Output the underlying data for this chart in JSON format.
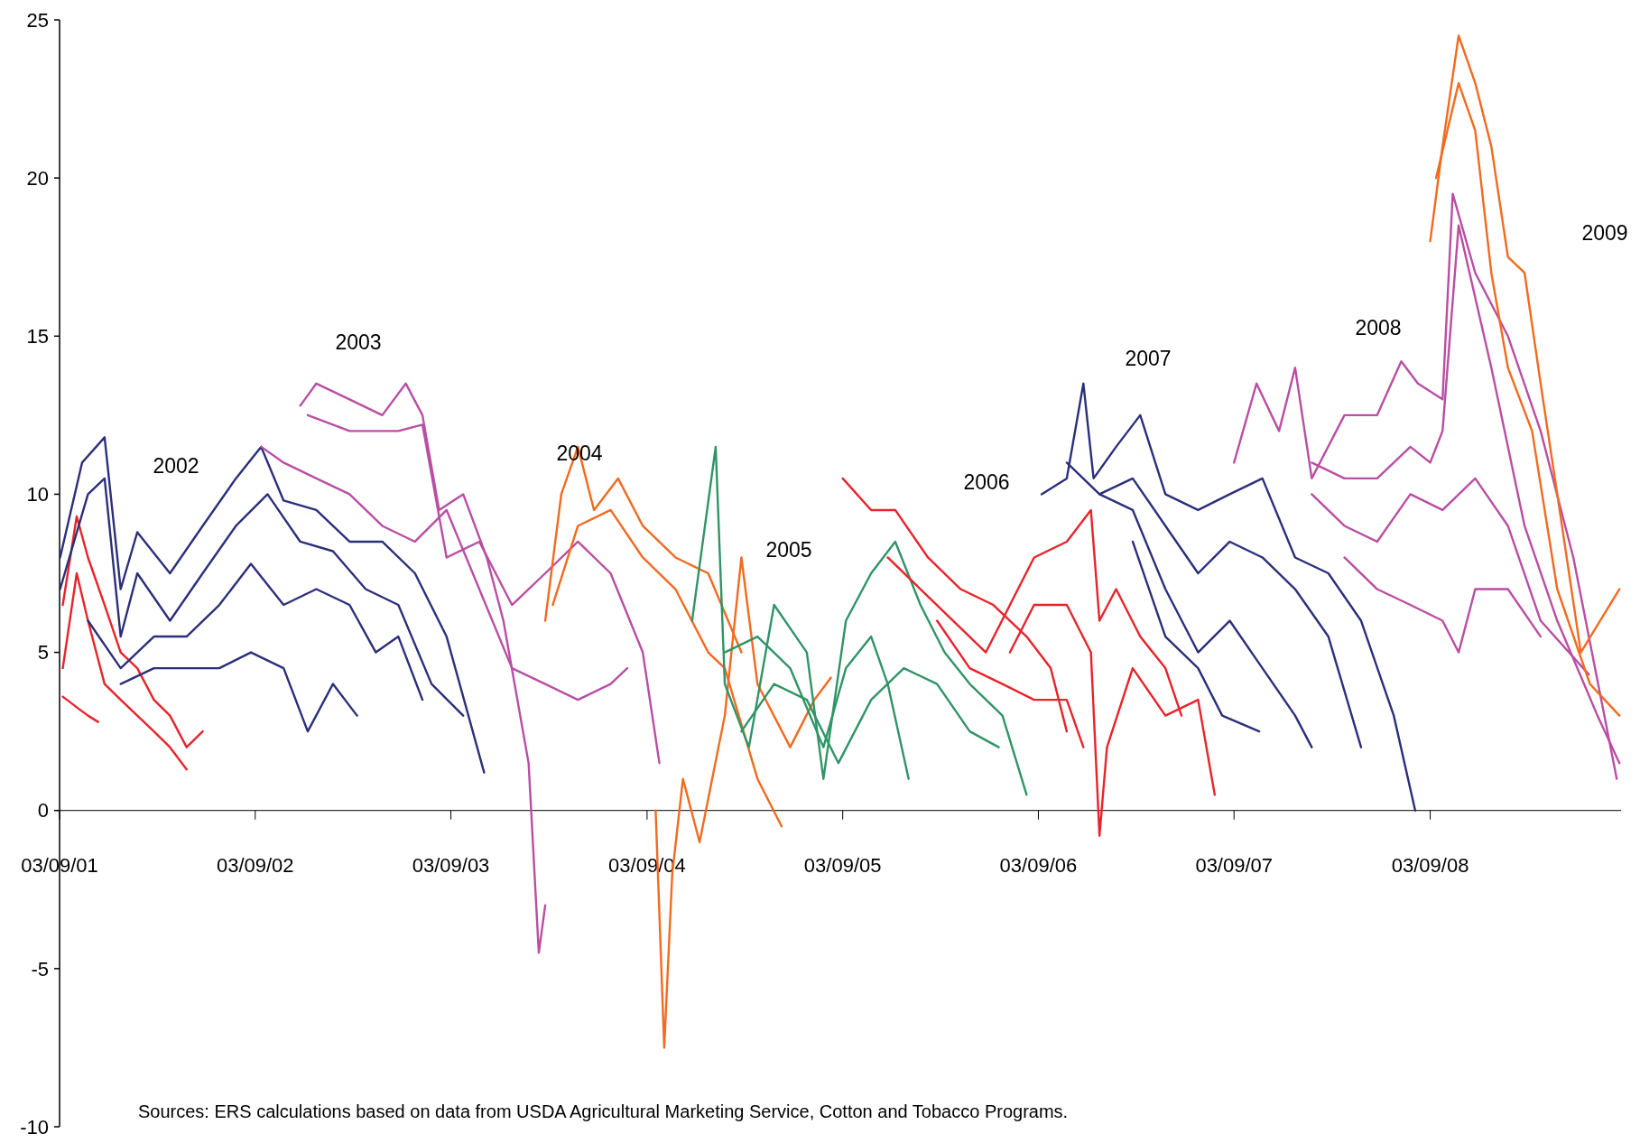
{
  "chart_data": {
    "type": "line",
    "xlim": [
      "2001-03-09",
      "2009-02-28"
    ],
    "ylim": [
      -10,
      25
    ],
    "xticks": [
      {
        "value": "2001-03-09",
        "label": "03/09/01"
      },
      {
        "value": "2002-03-09",
        "label": "03/09/02"
      },
      {
        "value": "2003-03-09",
        "label": "03/09/03"
      },
      {
        "value": "2004-03-09",
        "label": "03/09/04"
      },
      {
        "value": "2005-03-09",
        "label": "03/09/05"
      },
      {
        "value": "2006-03-09",
        "label": "03/09/06"
      },
      {
        "value": "2007-03-09",
        "label": "03/09/07"
      },
      {
        "value": "2008-03-09",
        "label": "03/09/08"
      }
    ],
    "yticks": [
      -10,
      -5,
      0,
      5,
      10,
      15,
      20,
      25
    ],
    "grid": false,
    "series": [
      {
        "color": "#e8232a",
        "x": [
          "2001-03-15",
          "2001-04-10",
          "2001-05-01",
          "2001-06-01",
          "2001-07-01",
          "2001-08-01",
          "2001-09-01",
          "2001-10-01",
          "2001-11-01",
          "2001-12-01"
        ],
        "values": [
          6.5,
          9.3,
          8,
          6.5,
          5,
          4.5,
          3.5,
          3,
          2,
          2.5
        ]
      },
      {
        "color": "#e8232a",
        "x": [
          "2001-03-15",
          "2001-04-10",
          "2001-05-01",
          "2001-06-01",
          "2001-07-01",
          "2001-08-01",
          "2001-09-01",
          "2001-10-01",
          "2001-11-01"
        ],
        "values": [
          4.5,
          7.5,
          6,
          4,
          3.5,
          3,
          2.5,
          2,
          1.3
        ]
      },
      {
        "color": "#e8232a",
        "x": [
          "2001-03-15",
          "2001-04-15",
          "2001-05-01",
          "2001-05-20"
        ],
        "values": [
          3.6,
          3.2,
          3,
          2.8
        ]
      },
      {
        "color": "#2b2f7a",
        "x": [
          "2001-03-10",
          "2001-04-20",
          "2001-06-01",
          "2001-07-01",
          "2001-08-01",
          "2001-10-01",
          "2001-12-01",
          "2002-02-01",
          "2002-03-20",
          "2002-05-01",
          "2002-07-01",
          "2002-09-01",
          "2002-11-01",
          "2003-01-01",
          "2003-03-01",
          "2003-05-10"
        ],
        "values": [
          8,
          11,
          11.8,
          7,
          8.8,
          7.5,
          9,
          10.5,
          11.5,
          9.8,
          9.5,
          8.5,
          8.5,
          7.5,
          5.5,
          1.2
        ]
      },
      {
        "color": "#2b2f7a",
        "x": [
          "2001-03-10",
          "2001-05-01",
          "2001-06-01",
          "2001-07-01",
          "2001-08-01",
          "2001-10-01",
          "2001-12-01",
          "2002-02-01",
          "2002-04-01",
          "2002-06-01",
          "2002-08-01",
          "2002-10-01",
          "2002-12-01",
          "2003-02-01",
          "2003-04-01"
        ],
        "values": [
          7,
          10,
          10.5,
          5.5,
          7.5,
          6,
          7.5,
          9,
          10,
          8.5,
          8.2,
          7,
          6.5,
          4,
          3
        ]
      },
      {
        "color": "#2b2f7a",
        "x": [
          "2001-05-01",
          "2001-07-01",
          "2001-09-01",
          "2001-11-01",
          "2002-01-01",
          "2002-03-01",
          "2002-05-01",
          "2002-07-01",
          "2002-09-01",
          "2002-10-20",
          "2002-12-01",
          "2003-01-15"
        ],
        "values": [
          6,
          4.5,
          5.5,
          5.5,
          6.5,
          7.8,
          6.5,
          7,
          6.5,
          5,
          5.5,
          3.5
        ]
      },
      {
        "color": "#2b2f7a",
        "x": [
          "2001-07-01",
          "2001-09-01",
          "2001-11-01",
          "2002-01-01",
          "2002-03-01",
          "2002-05-01",
          "2002-06-15",
          "2002-08-01",
          "2002-09-15"
        ],
        "values": [
          4,
          4.5,
          4.5,
          4.5,
          5,
          4.5,
          2.5,
          4,
          3
        ]
      },
      {
        "color": "#b94ea3",
        "x": [
          "2002-06-01",
          "2002-07-01",
          "2002-09-01",
          "2002-11-01",
          "2002-12-15",
          "2003-01-15",
          "2003-02-15",
          "2003-04-01",
          "2003-05-15",
          "2003-06-15",
          "2003-08-01",
          "2003-08-20",
          "2003-09-01"
        ],
        "values": [
          12.8,
          13.5,
          13,
          12.5,
          13.5,
          12.5,
          9.5,
          10,
          8,
          6,
          1.5,
          -4.5,
          -3
        ]
      },
      {
        "color": "#b94ea3",
        "x": [
          "2002-03-20",
          "2002-05-01",
          "2002-07-01",
          "2002-09-01",
          "2002-11-01",
          "2003-01-01",
          "2003-03-01",
          "2003-05-01",
          "2003-07-01",
          "2003-09-01",
          "2003-11-01",
          "2004-01-01",
          "2004-02-01"
        ],
        "values": [
          11.5,
          11,
          10.5,
          10,
          9,
          8.5,
          9.5,
          7,
          4.5,
          4,
          3.5,
          4,
          4.5
        ]
      },
      {
        "color": "#b94ea3",
        "x": [
          "2002-06-15",
          "2002-09-01",
          "2002-12-01",
          "2003-01-15",
          "2003-03-01",
          "2003-05-01",
          "2003-07-01",
          "2003-09-01",
          "2003-11-01",
          "2004-01-01",
          "2004-03-01",
          "2004-04-01"
        ],
        "values": [
          12.5,
          12,
          12,
          12.2,
          8,
          8.5,
          6.5,
          7.5,
          8.5,
          7.5,
          5,
          1.5
        ]
      },
      {
        "color": "#f26a1f",
        "x": [
          "2003-09-01",
          "2003-10-01",
          "2003-11-01",
          "2003-12-01",
          "2004-01-15",
          "2004-03-01",
          "2004-05-01",
          "2004-07-01",
          "2004-09-01"
        ],
        "values": [
          6,
          10,
          11.5,
          9.5,
          10.5,
          9,
          8,
          7.5,
          5
        ]
      },
      {
        "color": "#f26a1f",
        "x": [
          "2003-09-15",
          "2003-11-01",
          "2004-01-01",
          "2004-03-01",
          "2004-05-01",
          "2004-07-01",
          "2004-08-01",
          "2004-10-01",
          "2004-11-15"
        ],
        "values": [
          6.5,
          9,
          9.5,
          8,
          7,
          5,
          4.5,
          1,
          -0.5
        ]
      },
      {
        "color": "#f26a1f",
        "x": [
          "2004-03-25",
          "2004-04-10",
          "2004-04-25",
          "2004-05-15",
          "2004-06-15",
          "2004-08-01",
          "2004-09-01",
          "2004-10-01",
          "2004-12-01",
          "2005-01-15",
          "2005-02-15"
        ],
        "values": [
          0,
          -7.5,
          -2,
          1,
          -1,
          3,
          8,
          4,
          2,
          3.5,
          4.2
        ]
      },
      {
        "color": "#2f9466",
        "x": [
          "2004-06-01",
          "2004-07-15",
          "2004-08-01",
          "2004-09-15",
          "2004-11-01",
          "2005-01-01",
          "2005-02-01",
          "2005-03-15",
          "2005-05-01",
          "2005-06-15",
          "2005-08-01",
          "2005-09-15",
          "2005-11-01",
          "2006-01-01",
          "2006-02-15"
        ],
        "values": [
          6,
          11.5,
          4,
          2,
          6.5,
          5,
          1,
          6,
          7.5,
          8.5,
          6.5,
          5,
          4,
          3,
          0.5
        ]
      },
      {
        "color": "#2f9466",
        "x": [
          "2004-08-01",
          "2004-10-01",
          "2004-12-01",
          "2005-02-01",
          "2005-03-15",
          "2005-05-01",
          "2005-06-01",
          "2005-07-10"
        ],
        "values": [
          5,
          5.5,
          4.5,
          2,
          4.5,
          5.5,
          4,
          1
        ]
      },
      {
        "color": "#2f9466",
        "x": [
          "2004-09-01",
          "2004-11-01",
          "2005-01-01",
          "2005-03-01",
          "2005-05-01",
          "2005-07-01",
          "2005-09-01",
          "2005-11-01",
          "2005-12-25"
        ],
        "values": [
          2.5,
          4,
          3.5,
          1.5,
          3.5,
          4.5,
          4,
          2.5,
          2
        ]
      },
      {
        "color": "#e8232a",
        "x": [
          "2005-03-09",
          "2005-05-01",
          "2005-06-15",
          "2005-08-15",
          "2005-10-15",
          "2005-12-15",
          "2006-02-15",
          "2006-04-01",
          "2006-05-01"
        ],
        "values": [
          10.5,
          9.5,
          9.5,
          8,
          7,
          6.5,
          5.5,
          4.5,
          2.5
        ]
      },
      {
        "color": "#e8232a",
        "x": [
          "2005-06-01",
          "2005-08-01",
          "2005-10-01",
          "2005-12-01",
          "2006-01-15",
          "2006-03-01",
          "2006-05-01",
          "2006-06-15",
          "2006-07-01",
          "2006-08-01",
          "2006-09-15",
          "2006-11-01",
          "2006-12-01"
        ],
        "values": [
          8,
          7,
          6,
          5,
          6.5,
          8,
          8.5,
          9.5,
          6,
          7,
          5.5,
          4.5,
          3
        ]
      },
      {
        "color": "#e8232a",
        "x": [
          "2006-01-15",
          "2006-03-01",
          "2006-05-01",
          "2006-06-15",
          "2006-07-01",
          "2006-07-15",
          "2006-09-01",
          "2006-11-01",
          "2007-01-01",
          "2007-02-01"
        ],
        "values": [
          5,
          6.5,
          6.5,
          5,
          -0.8,
          2,
          4.5,
          3,
          3.5,
          0.5
        ]
      },
      {
        "color": "#e8232a",
        "x": [
          "2005-09-01",
          "2005-11-01",
          "2006-01-01",
          "2006-03-01",
          "2006-05-01",
          "2006-06-01"
        ],
        "values": [
          6,
          4.5,
          4,
          3.5,
          3.5,
          2
        ]
      },
      {
        "color": "#2b2f7a",
        "x": [
          "2006-03-15",
          "2006-05-01",
          "2006-06-01",
          "2006-06-20",
          "2006-08-01",
          "2006-09-15",
          "2006-11-01",
          "2007-01-01",
          "2007-03-01",
          "2007-05-01",
          "2007-07-01",
          "2007-09-01",
          "2007-11-01",
          "2008-01-01",
          "2008-02-10"
        ],
        "values": [
          10,
          10.5,
          13.5,
          10.5,
          11.5,
          12.5,
          10,
          9.5,
          10,
          10.5,
          8,
          7.5,
          6,
          3,
          0
        ]
      },
      {
        "color": "#2b2f7a",
        "x": [
          "2006-05-01",
          "2006-07-01",
          "2006-09-01",
          "2006-11-01",
          "2007-01-01",
          "2007-03-01",
          "2007-05-01",
          "2007-07-01",
          "2007-09-01",
          "2007-11-01"
        ],
        "values": [
          11,
          10,
          10.5,
          9,
          7.5,
          8.5,
          8,
          7,
          5.5,
          2
        ]
      },
      {
        "color": "#2b2f7a",
        "x": [
          "2006-07-01",
          "2006-09-01",
          "2006-11-01",
          "2007-01-01",
          "2007-03-01",
          "2007-05-01",
          "2007-07-01",
          "2007-08-01"
        ],
        "values": [
          10,
          9.5,
          7,
          5,
          6,
          4.5,
          3,
          2
        ]
      },
      {
        "color": "#2b2f7a",
        "x": [
          "2006-09-01",
          "2006-11-01",
          "2007-01-01",
          "2007-02-15",
          "2007-04-25"
        ],
        "values": [
          8.5,
          5.5,
          4.5,
          3,
          2.5
        ]
      },
      {
        "color": "#b94ea3",
        "x": [
          "2007-03-09",
          "2007-04-20",
          "2007-06-01",
          "2007-07-01",
          "2007-08-01",
          "2007-10-01",
          "2007-12-01",
          "2008-01-15",
          "2008-02-15",
          "2008-04-01",
          "2008-04-20",
          "2008-06-01",
          "2008-08-01",
          "2008-10-01",
          "2008-12-01",
          "2009-02-20"
        ],
        "values": [
          11,
          13.5,
          12,
          14,
          10.5,
          12.5,
          12.5,
          14.2,
          13.5,
          13,
          19.5,
          17,
          15,
          12,
          8,
          1
        ]
      },
      {
        "color": "#b94ea3",
        "x": [
          "2007-08-01",
          "2007-10-01",
          "2007-12-01",
          "2008-02-01",
          "2008-03-09",
          "2008-04-01",
          "2008-05-01",
          "2008-07-01",
          "2008-09-01",
          "2008-11-01",
          "2009-01-15",
          "2009-02-25"
        ],
        "values": [
          11,
          10.5,
          10.5,
          11.5,
          11,
          12,
          18.5,
          14,
          9,
          6,
          3,
          1.5
        ]
      },
      {
        "color": "#b94ea3",
        "x": [
          "2007-08-01",
          "2007-10-01",
          "2007-12-01",
          "2008-02-01",
          "2008-04-01",
          "2008-06-01",
          "2008-08-01",
          "2008-10-01",
          "2008-12-30"
        ],
        "values": [
          10,
          9,
          8.5,
          10,
          9.5,
          10.5,
          9,
          6,
          4.3
        ]
      },
      {
        "color": "#b94ea3",
        "x": [
          "2007-10-01",
          "2007-12-01",
          "2008-02-01",
          "2008-04-01",
          "2008-05-01",
          "2008-06-01",
          "2008-08-01",
          "2008-10-01"
        ],
        "values": [
          8,
          7,
          6.5,
          6,
          5,
          7,
          7,
          5.5
        ]
      },
      {
        "color": "#f26a1f",
        "x": [
          "2008-03-09",
          "2008-04-01",
          "2008-05-01",
          "2008-06-01",
          "2008-07-01",
          "2008-08-01",
          "2008-09-01",
          "2008-10-01",
          "2008-11-01",
          "2008-12-15",
          "2009-02-25"
        ],
        "values": [
          18,
          21,
          24.5,
          23,
          21,
          17.5,
          17,
          13.5,
          10,
          5,
          7
        ]
      },
      {
        "color": "#f26a1f",
        "x": [
          "2008-03-20",
          "2008-05-01",
          "2008-06-01",
          "2008-07-01",
          "2008-08-01",
          "2008-09-15",
          "2008-11-01",
          "2009-01-01",
          "2009-02-25"
        ],
        "values": [
          20,
          23,
          21.5,
          17,
          14,
          12,
          7,
          4,
          3
        ]
      }
    ],
    "annotations": [
      "2002",
      "2003",
      "2004",
      "2005",
      "2006",
      "2007",
      "2008",
      "2009",
      "Sources:  ERS calculations based on data from USDA Agricultural Marketing Service, Cotton and Tobacco Programs."
    ]
  }
}
